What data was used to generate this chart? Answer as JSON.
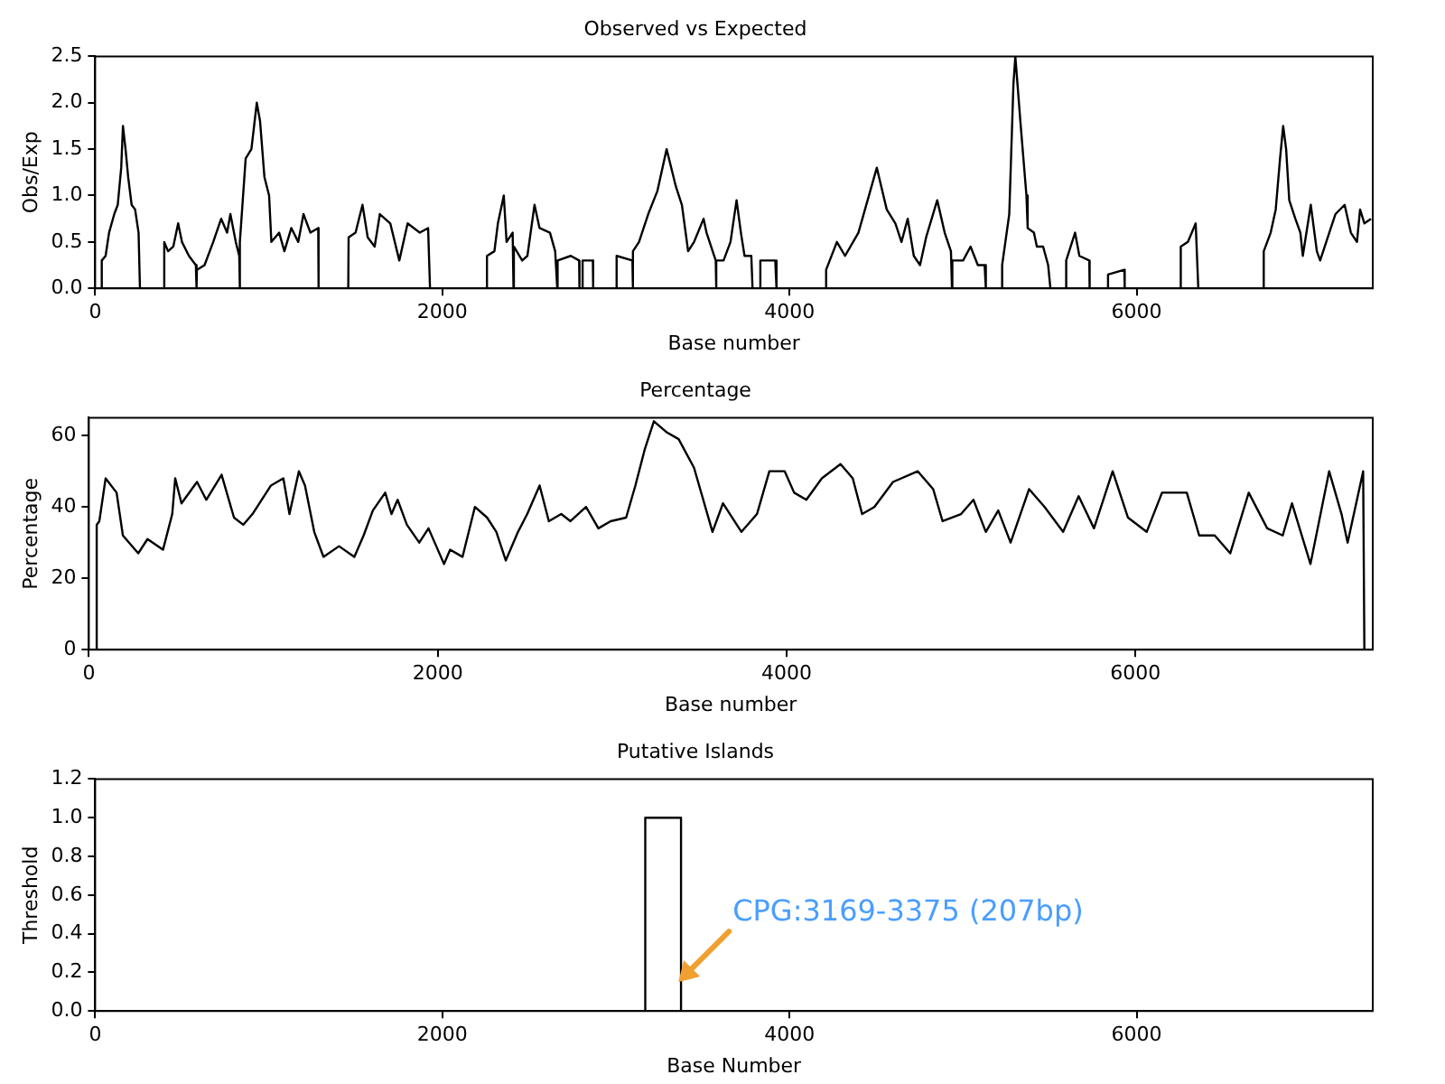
{
  "chart_data": [
    {
      "type": "line",
      "title": "Observed vs Expected",
      "xlabel": "Base number",
      "ylabel": "Obs/Exp",
      "xlim": [
        0,
        7360
      ],
      "xticks": [
        0,
        2000,
        4000,
        6000
      ],
      "ylim": [
        0,
        2.5
      ],
      "yticks": [
        {
          "value": 0,
          "label": "0.0"
        },
        {
          "value": 0.5,
          "label": "0.5"
        },
        {
          "value": 1,
          "label": "1.0"
        },
        {
          "value": 1.5,
          "label": "1.5"
        },
        {
          "value": 2,
          "label": "2.0"
        },
        {
          "value": 2.5,
          "label": "2.5"
        }
      ],
      "grid": false,
      "legend": false,
      "marker": "none",
      "line_style": "solid",
      "series": [
        {
          "color": "#000000",
          "x": [
            35,
            38,
            60,
            80,
            110,
            130,
            150,
            160,
            175,
            190,
            210,
            230,
            250,
            258,
            300,
            396,
            398,
            420,
            450,
            478,
            500,
            540,
            580,
            584,
            586,
            630,
            680,
            726,
            760,
            779,
            810,
            830,
            832,
            835,
            867,
            900,
            931,
            950,
            975,
            1002,
            1015,
            1060,
            1090,
            1130,
            1170,
            1200,
            1240,
            1285,
            1287,
            1400,
            1458,
            1460,
            1500,
            1540,
            1570,
            1610,
            1640,
            1700,
            1752,
            1800,
            1870,
            1918,
            1929,
            2100,
            2255,
            2257,
            2300,
            2320,
            2354,
            2370,
            2405,
            2410,
            2412,
            2460,
            2490,
            2531,
            2560,
            2620,
            2650,
            2662,
            2664,
            2740,
            2788,
            2790,
            2800,
            2806,
            2808,
            2867,
            2869,
            2950,
            3002,
            3004,
            3095,
            3097,
            3099,
            3133,
            3186,
            3239,
            3292,
            3345,
            3380,
            3416,
            3450,
            3505,
            3522,
            3575,
            3577,
            3579,
            3620,
            3660,
            3695,
            3720,
            3741,
            3780,
            3787,
            3810,
            3830,
            3832,
            3918,
            3925,
            4100,
            4209,
            4211,
            4273,
            4320,
            4397,
            4450,
            4503,
            4560,
            4610,
            4645,
            4681,
            4716,
            4752,
            4787,
            4851,
            4894,
            4930,
            4936,
            4938,
            5000,
            5043,
            5085,
            5124,
            5131,
            5180,
            5223,
            5225,
            5266,
            5290,
            5301,
            5330,
            5365,
            5372,
            5408,
            5425,
            5461,
            5490,
            5503,
            5550,
            5592,
            5594,
            5645,
            5670,
            5727,
            5729,
            5780,
            5833,
            5835,
            5929,
            5931,
            6100,
            6252,
            6254,
            6295,
            6340,
            6355,
            6500,
            6730,
            6732,
            6772,
            6801,
            6826,
            6844,
            6861,
            6879,
            6914,
            6943,
            6957,
            7003,
            7038,
            7057,
            7092,
            7145,
            7198,
            7234,
            7269,
            7287,
            7312,
            7350
          ],
          "values": [
            0,
            0.3,
            0.35,
            0.6,
            0.8,
            0.9,
            1.3,
            1.75,
            1.5,
            1.2,
            0.9,
            0.85,
            0.6,
            0,
            null,
            0,
            0.5,
            0.4,
            0.45,
            0.7,
            0.5,
            0.35,
            0.25,
            0,
            0.2,
            0.25,
            0.5,
            0.75,
            0.6,
            0.8,
            0.5,
            0.35,
            0,
            0.5,
            1.4,
            1.5,
            2.0,
            1.8,
            1.2,
            1.0,
            0.5,
            0.6,
            0.4,
            0.65,
            0.5,
            0.8,
            0.6,
            0.65,
            0,
            null,
            0,
            0.55,
            0.6,
            0.9,
            0.55,
            0.45,
            0.8,
            0.7,
            0.3,
            0.7,
            0.6,
            0.65,
            0,
            null,
            0,
            0.35,
            0.4,
            0.7,
            1.0,
            0.5,
            0.6,
            0,
            0.45,
            0.3,
            0.35,
            0.9,
            0.65,
            0.6,
            0.4,
            0,
            0.3,
            0.35,
            0.3,
            0,
            null,
            0,
            0.3,
            0.3,
            0,
            null,
            0,
            0.35,
            0.3,
            0,
            0.4,
            0.5,
            0.8,
            1.05,
            1.5,
            1.1,
            0.9,
            0.4,
            0.5,
            0.75,
            0.6,
            0.3,
            0,
            0.3,
            0.3,
            0.5,
            0.95,
            0.6,
            0.35,
            0.35,
            0,
            null,
            0,
            0.3,
            0.3,
            0,
            null,
            0,
            0.2,
            0.5,
            0.35,
            0.6,
            0.95,
            1.3,
            0.85,
            0.7,
            0.5,
            0.75,
            0.35,
            0.25,
            0.55,
            0.95,
            0.6,
            0.4,
            0,
            0.3,
            0.3,
            0.45,
            0.25,
            0.25,
            0,
            null,
            0,
            0.25,
            0.8,
            2.2,
            2.5,
            1.8,
            1.0,
            0.65,
            0.6,
            0.45,
            0.45,
            0.25,
            0,
            null,
            0,
            0.3,
            0.6,
            0.35,
            0.3,
            0,
            null,
            0,
            0.15,
            0.2,
            0,
            null,
            0,
            0.45,
            0.5,
            0.7,
            0,
            null,
            0,
            0.4,
            0.6,
            0.85,
            1.4,
            1.75,
            1.5,
            0.95,
            0.75,
            0.6,
            0.35,
            0.9,
            0.4,
            0.3,
            0.5,
            0.8,
            0.9,
            0.6,
            0.5,
            0.85,
            0.7,
            0.75
          ]
        }
      ]
    },
    {
      "type": "line",
      "title": "Percentage",
      "xlabel": "Base number",
      "ylabel": "Percentage",
      "xlim": [
        0,
        7360
      ],
      "xticks": [
        0,
        2000,
        4000,
        6000
      ],
      "ylim": [
        0,
        65
      ],
      "yticks": [
        0,
        20,
        40,
        60
      ],
      "grid": false,
      "legend": false,
      "marker": "none",
      "line_style": "solid",
      "series": [
        {
          "color": "#000000",
          "x": [
            42,
            45,
            60,
            96,
            159,
            195,
            283,
            336,
            425,
            478,
            495,
            531,
            620,
            673,
            761,
            832,
            885,
            938,
            1044,
            1115,
            1150,
            1204,
            1239,
            1292,
            1345,
            1434,
            1522,
            1575,
            1628,
            1699,
            1735,
            1770,
            1823,
            1894,
            1947,
            2036,
            2071,
            2142,
            2213,
            2283,
            2336,
            2390,
            2460,
            2513,
            2584,
            2637,
            2708,
            2761,
            2850,
            2921,
            2991,
            3080,
            3133,
            3186,
            3239,
            3310,
            3381,
            3469,
            3522,
            3575,
            3635,
            3741,
            3830,
            3901,
            3989,
            4043,
            4113,
            4202,
            4309,
            4379,
            4433,
            4503,
            4610,
            4752,
            4840,
            4894,
            5000,
            5071,
            5142,
            5213,
            5284,
            5390,
            5479,
            5585,
            5674,
            5762,
            5869,
            5957,
            6064,
            6152,
            6294,
            6365,
            6454,
            6543,
            6649,
            6755,
            6844,
            6897,
            7003,
            7110,
            7181,
            7216,
            7305,
            7312
          ],
          "values": [
            0,
            35,
            36,
            48,
            44,
            32,
            27,
            31,
            28,
            38,
            48,
            41,
            47,
            42,
            49,
            37,
            35,
            38,
            46,
            48,
            38,
            50,
            46,
            33,
            26,
            29,
            26,
            32,
            39,
            44,
            38,
            42,
            35,
            30,
            34,
            24,
            28,
            26,
            40,
            37,
            33,
            25,
            33,
            38,
            46,
            36,
            38,
            36,
            40,
            34,
            36,
            37,
            46,
            56,
            64,
            61,
            59,
            51,
            42,
            33,
            41,
            33,
            38,
            50,
            50,
            44,
            42,
            48,
            52,
            48,
            38,
            40,
            47,
            50,
            45,
            36,
            38,
            42,
            33,
            39,
            30,
            45,
            40,
            33,
            43,
            34,
            50,
            37,
            33,
            44,
            44,
            32,
            32,
            27,
            44,
            34,
            32,
            41,
            24,
            50,
            38,
            30,
            50,
            0
          ]
        }
      ]
    },
    {
      "type": "line",
      "title": "Putative Islands",
      "xlabel": "Base Number",
      "ylabel": "Threshold",
      "xlim": [
        0,
        7360
      ],
      "xticks": [
        0,
        2000,
        4000,
        6000
      ],
      "ylim": [
        0,
        1.2
      ],
      "yticks": [
        {
          "value": 0,
          "label": "0.0"
        },
        {
          "value": 0.2,
          "label": "0.2"
        },
        {
          "value": 0.4,
          "label": "0.4"
        },
        {
          "value": 0.6,
          "label": "0.6"
        },
        {
          "value": 0.8,
          "label": "0.8"
        },
        {
          "value": 1,
          "label": "1.0"
        },
        {
          "value": 1.2,
          "label": "1.2"
        }
      ],
      "grid": false,
      "legend": false,
      "marker": "none",
      "line_style": "solid",
      "series": [
        {
          "color": "#000000",
          "x": [
            3169,
            3169,
            3375,
            3375
          ],
          "values": [
            0,
            1,
            1,
            0
          ]
        }
      ],
      "annotations": [
        {
          "text": "CPG:3169-3375 (207bp)",
          "x": 3360,
          "y": 0.15
        }
      ]
    }
  ]
}
